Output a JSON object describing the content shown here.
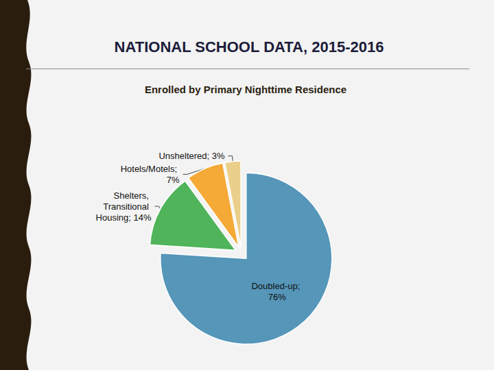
{
  "chart_data": {
    "type": "pie",
    "title": "NATIONAL SCHOOL DATA, 2015-2016",
    "subtitle": "Enrolled by Primary Nighttime Residence",
    "categories": [
      "Doubled-up",
      "Shelters, Transitional Housing",
      "Hotels/Motels",
      "Unsheltered"
    ],
    "values": [
      76,
      14,
      7,
      3
    ],
    "value_labels": [
      "Doubled-up; 76%",
      "Shelters, Transitional Housing; 14%",
      "Hotels/Motels; 7%",
      "Unsheltered; 3%"
    ],
    "colors": [
      "#5596b9",
      "#4fb45a",
      "#f5a936",
      "#eacf8a"
    ],
    "data_labels": true
  }
}
